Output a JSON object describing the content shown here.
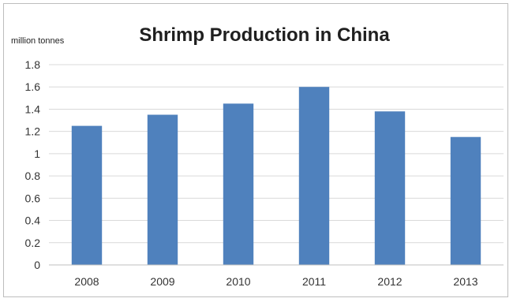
{
  "chart_data": {
    "type": "bar",
    "title": "Shrimp Production in China",
    "unit_label": "million tonnes",
    "categories": [
      "2008",
      "2009",
      "2010",
      "2011",
      "2012",
      "2013"
    ],
    "values": [
      1.25,
      1.35,
      1.45,
      1.6,
      1.38,
      1.15
    ],
    "ylim": [
      0,
      1.8
    ],
    "yticks": [
      "0",
      "0.2",
      "0.4",
      "0.6",
      "0.8",
      "1",
      "1.2",
      "1.4",
      "1.6",
      "1.8"
    ],
    "grid": true,
    "legend": "none",
    "bar_color": "#4f81bd",
    "grid_color": "#d9d9d9"
  }
}
